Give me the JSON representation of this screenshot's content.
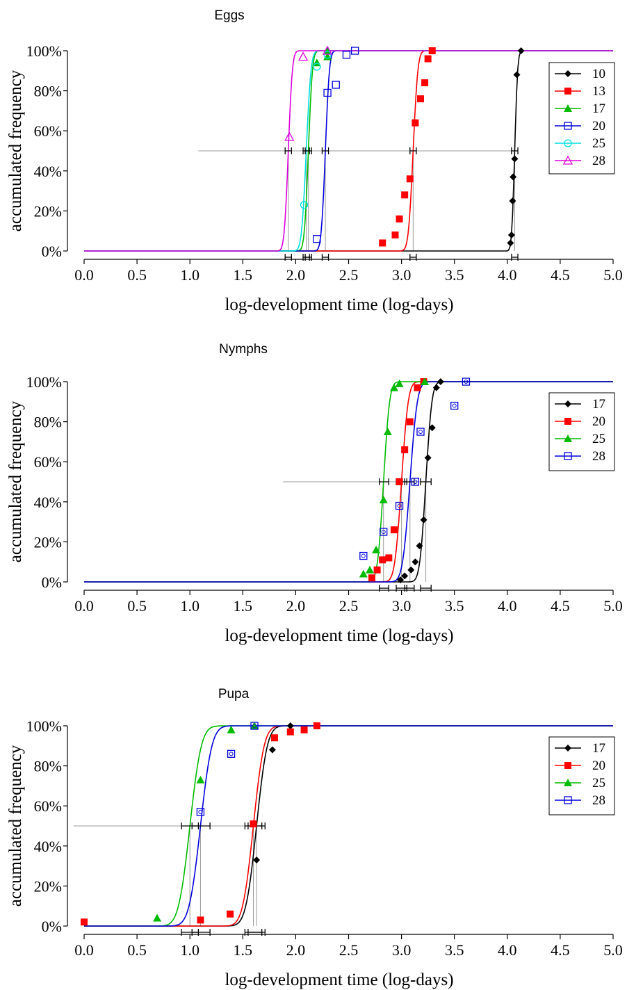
{
  "chart_data": [
    {
      "type": "scatter",
      "title": "Eggs",
      "xlabel": "log-development time (log-days)",
      "ylabel": "accumulated frequency",
      "xlim": [
        0,
        5
      ],
      "ylim": [
        0,
        100
      ],
      "x_ticks": [
        "0.0",
        "0.5",
        "1.0",
        "1.5",
        "2.0",
        "2.5",
        "3.0",
        "3.5",
        "4.0",
        "4.5",
        "5.0"
      ],
      "y_ticks": [
        "0%",
        "20%",
        "40%",
        "60%",
        "80%",
        "100%"
      ],
      "legend_position": "top-right",
      "series": [
        {
          "name": "10",
          "color": "#000000",
          "marker": "diamond",
          "mu": 4.07,
          "s": 0.022,
          "ci": [
            4.04,
            4.1
          ],
          "points": [
            [
              4.03,
              4
            ],
            [
              4.04,
              8
            ],
            [
              4.05,
              25
            ],
            [
              4.055,
              37
            ],
            [
              4.07,
              46
            ],
            [
              4.09,
              88
            ],
            [
              4.13,
              100
            ]
          ]
        },
        {
          "name": "13",
          "color": "#ff0000",
          "marker": "square",
          "mu": 3.11,
          "s": 0.035,
          "ci": [
            3.08,
            3.14
          ],
          "points": [
            [
              2.82,
              4
            ],
            [
              2.94,
              8
            ],
            [
              2.98,
              16
            ],
            [
              3.03,
              28
            ],
            [
              3.08,
              36
            ],
            [
              3.13,
              64
            ],
            [
              3.18,
              76
            ],
            [
              3.22,
              84
            ],
            [
              3.25,
              96
            ],
            [
              3.29,
              100
            ]
          ]
        },
        {
          "name": "17",
          "color": "#00bb00",
          "marker": "triangle",
          "mu": 2.12,
          "s": 0.03,
          "ci": [
            2.09,
            2.15
          ],
          "points": [
            [
              2.2,
              94
            ],
            [
              2.3,
              97
            ],
            [
              2.3,
              100
            ]
          ]
        },
        {
          "name": "20",
          "color": "#0000dd",
          "marker": "open-square",
          "mu": 2.28,
          "s": 0.03,
          "ci": [
            2.25,
            2.31
          ],
          "points": [
            [
              2.2,
              6
            ],
            [
              2.3,
              79
            ],
            [
              2.38,
              83
            ],
            [
              2.48,
              98
            ],
            [
              2.56,
              100
            ]
          ]
        },
        {
          "name": "25",
          "color": "#00dddd",
          "marker": "open-circle",
          "mu": 2.1,
          "s": 0.035,
          "ci": [
            2.07,
            2.13
          ],
          "points": [
            [
              2.08,
              23
            ],
            [
              2.2,
              92
            ],
            [
              2.3,
              98
            ]
          ]
        },
        {
          "name": "28",
          "color": "#dd00dd",
          "marker": "open-triangle",
          "mu": 1.93,
          "s": 0.03,
          "ci": [
            1.9,
            1.96
          ],
          "points": [
            [
              1.94,
              57
            ],
            [
              2.07,
              97
            ],
            [
              2.3,
              100
            ]
          ]
        }
      ]
    },
    {
      "type": "scatter",
      "title": "Nymphs",
      "xlabel": "log-development time (log-days)",
      "ylabel": "accumulated frequency",
      "xlim": [
        0,
        5
      ],
      "ylim": [
        0,
        100
      ],
      "x_ticks": [
        "0.0",
        "0.5",
        "1.0",
        "1.5",
        "2.0",
        "2.5",
        "3.0",
        "3.5",
        "4.0",
        "4.5",
        "5.0"
      ],
      "y_ticks": [
        "0%",
        "20%",
        "40%",
        "60%",
        "80%",
        "100%"
      ],
      "legend_position": "top-right",
      "series": [
        {
          "name": "17",
          "color": "#000000",
          "marker": "diamond",
          "mu": 3.23,
          "s": 0.045,
          "ci": [
            3.18,
            3.28
          ],
          "points": [
            [
              2.99,
              1
            ],
            [
              3.03,
              3
            ],
            [
              3.09,
              6
            ],
            [
              3.13,
              10
            ],
            [
              3.17,
              18
            ],
            [
              3.21,
              31
            ],
            [
              3.25,
              62
            ],
            [
              3.29,
              77
            ],
            [
              3.33,
              97
            ],
            [
              3.37,
              100
            ]
          ]
        },
        {
          "name": "20",
          "color": "#ff0000",
          "marker": "square",
          "mu": 3.0,
          "s": 0.05,
          "ci": [
            2.95,
            3.05
          ],
          "points": [
            [
              2.72,
              2
            ],
            [
              2.77,
              6
            ],
            [
              2.82,
              11
            ],
            [
              2.88,
              12
            ],
            [
              2.93,
              26
            ],
            [
              2.98,
              50
            ],
            [
              3.03,
              66
            ],
            [
              3.08,
              80
            ],
            [
              3.15,
              97
            ],
            [
              3.21,
              100
            ]
          ]
        },
        {
          "name": "25",
          "color": "#00bb00",
          "marker": "triangle",
          "mu": 2.83,
          "s": 0.045,
          "ci": [
            2.79,
            2.88
          ],
          "points": [
            [
              2.64,
              4
            ],
            [
              2.7,
              6
            ],
            [
              2.76,
              16
            ],
            [
              2.83,
              41
            ],
            [
              2.87,
              75
            ],
            [
              2.93,
              97
            ],
            [
              2.98,
              99
            ],
            [
              3.22,
              100
            ]
          ]
        },
        {
          "name": "28",
          "color": "#0000dd",
          "marker": "open-square",
          "mu": 3.08,
          "s": 0.055,
          "ci": [
            3.03,
            3.12
          ],
          "points": [
            [
              2.64,
              13
            ],
            [
              2.83,
              25
            ],
            [
              2.98,
              38
            ],
            [
              3.13,
              50
            ],
            [
              3.18,
              75
            ],
            [
              3.5,
              88
            ],
            [
              3.61,
              100
            ]
          ]
        }
      ]
    },
    {
      "type": "scatter",
      "title": "Pupa",
      "xlabel": "log-development time (log-days)",
      "ylabel": "accumulated frequency",
      "xlim": [
        0,
        5
      ],
      "ylim": [
        0,
        100
      ],
      "x_ticks": [
        "0.0",
        "0.5",
        "1.0",
        "1.5",
        "2.0",
        "2.5",
        "3.0",
        "3.5",
        "4.0",
        "4.5",
        "5.0"
      ],
      "y_ticks": [
        "0%",
        "20%",
        "40%",
        "60%",
        "80%",
        "100%"
      ],
      "legend_position": "top-right",
      "series": [
        {
          "name": "17",
          "color": "#000000",
          "marker": "diamond",
          "mu": 1.63,
          "s": 0.08,
          "ci": [
            1.55,
            1.71
          ],
          "points": [
            [
              1.63,
              33
            ],
            [
              1.78,
              88
            ],
            [
              1.95,
              100
            ]
          ]
        },
        {
          "name": "20",
          "color": "#ff0000",
          "marker": "square",
          "mu": 1.6,
          "s": 0.08,
          "ci": [
            1.52,
            1.68
          ],
          "points": [
            [
              0.0,
              2
            ],
            [
              1.1,
              3
            ],
            [
              1.38,
              6
            ],
            [
              1.6,
              51
            ],
            [
              1.8,
              94
            ],
            [
              1.95,
              97
            ],
            [
              2.08,
              98
            ],
            [
              2.2,
              100
            ]
          ]
        },
        {
          "name": "25",
          "color": "#00bb00",
          "marker": "triangle",
          "mu": 1.0,
          "s": 0.085,
          "ci": [
            0.92,
            1.08
          ],
          "points": [
            [
              0.69,
              4
            ],
            [
              1.1,
              73
            ],
            [
              1.39,
              98
            ],
            [
              1.61,
              100
            ]
          ]
        },
        {
          "name": "28",
          "color": "#0000dd",
          "marker": "open-square",
          "mu": 1.1,
          "s": 0.085,
          "ci": [
            1.02,
            1.19
          ],
          "points": [
            [
              1.1,
              57
            ],
            [
              1.39,
              86
            ],
            [
              1.61,
              100
            ]
          ]
        }
      ]
    }
  ]
}
